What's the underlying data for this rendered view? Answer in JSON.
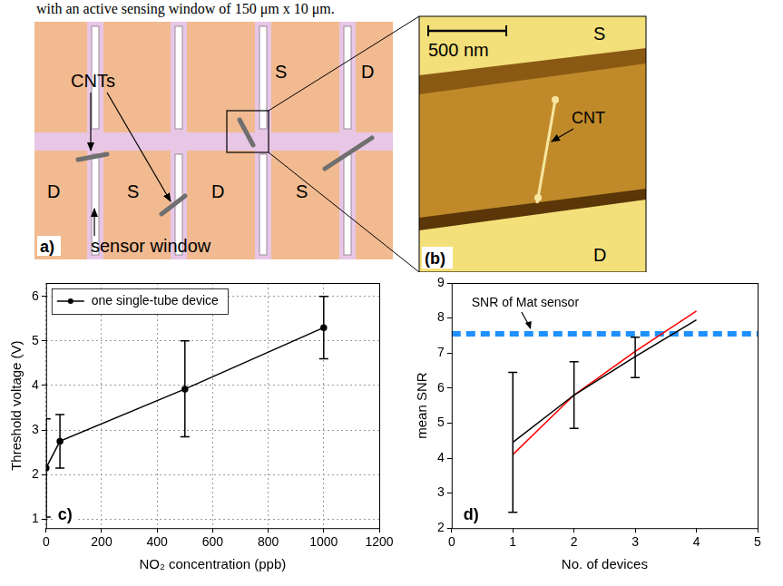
{
  "caption": "with an active sensing window of 150 μm x 10 μm.",
  "panel_a": {
    "letter": "a)",
    "cnts_label": "CNTs",
    "sensor_window_label": "sensor window",
    "electrode_labels": [
      "S",
      "D",
      "D",
      "S",
      "D",
      "S"
    ]
  },
  "panel_b": {
    "letter": "(b)",
    "scale_bar": "500 nm",
    "source_label": "S",
    "drain_label": "D",
    "cnt_label": "CNT"
  },
  "chart_data": [
    {
      "type": "line",
      "letter": "c)",
      "x_label": "NO₂ concentration (ppb)",
      "y_label": "Threshold voltage (V)",
      "x": [
        0,
        50,
        500,
        1000
      ],
      "series": [
        {
          "name": "one single-tube device",
          "color": "#000000",
          "marker": "circle",
          "values": [
            2.15,
            2.75,
            3.92,
            5.3
          ],
          "y_low": [
            1.05,
            2.15,
            2.85,
            4.6
          ],
          "y_high": [
            3.25,
            3.35,
            5.0,
            6.0
          ]
        }
      ],
      "xlim": [
        0,
        1200
      ],
      "xticks": [
        0,
        200,
        400,
        600,
        800,
        1000,
        1200
      ],
      "ylim": [
        0.8,
        6.3
      ],
      "yticks": [
        1,
        2,
        3,
        4,
        5,
        6
      ],
      "grid": true,
      "legend": "top-left"
    },
    {
      "type": "line",
      "letter": "d)",
      "x_label": "No. of devices",
      "y_label": "mean SNR",
      "x": [
        1,
        2,
        3,
        4
      ],
      "series": [
        {
          "color": "#000000",
          "values": [
            4.45,
            5.8,
            6.9,
            7.95
          ],
          "y_low": [
            2.45,
            4.85,
            6.3,
            null
          ],
          "y_high": [
            6.45,
            6.75,
            7.45,
            null
          ]
        },
        {
          "color": "#ff0000",
          "values": [
            4.1,
            5.8,
            7.05,
            8.2
          ]
        }
      ],
      "reference_line": {
        "label": "SNR of Mat sensor",
        "value": 7.55,
        "color": "#1e90ff",
        "line_style": "dashed"
      },
      "xlim": [
        0,
        5
      ],
      "xticks": [
        0,
        1,
        2,
        3,
        4,
        5
      ],
      "ylim": [
        2,
        9
      ],
      "yticks": [
        2,
        3,
        4,
        5,
        6,
        7,
        8,
        9
      ],
      "grid": false
    }
  ]
}
